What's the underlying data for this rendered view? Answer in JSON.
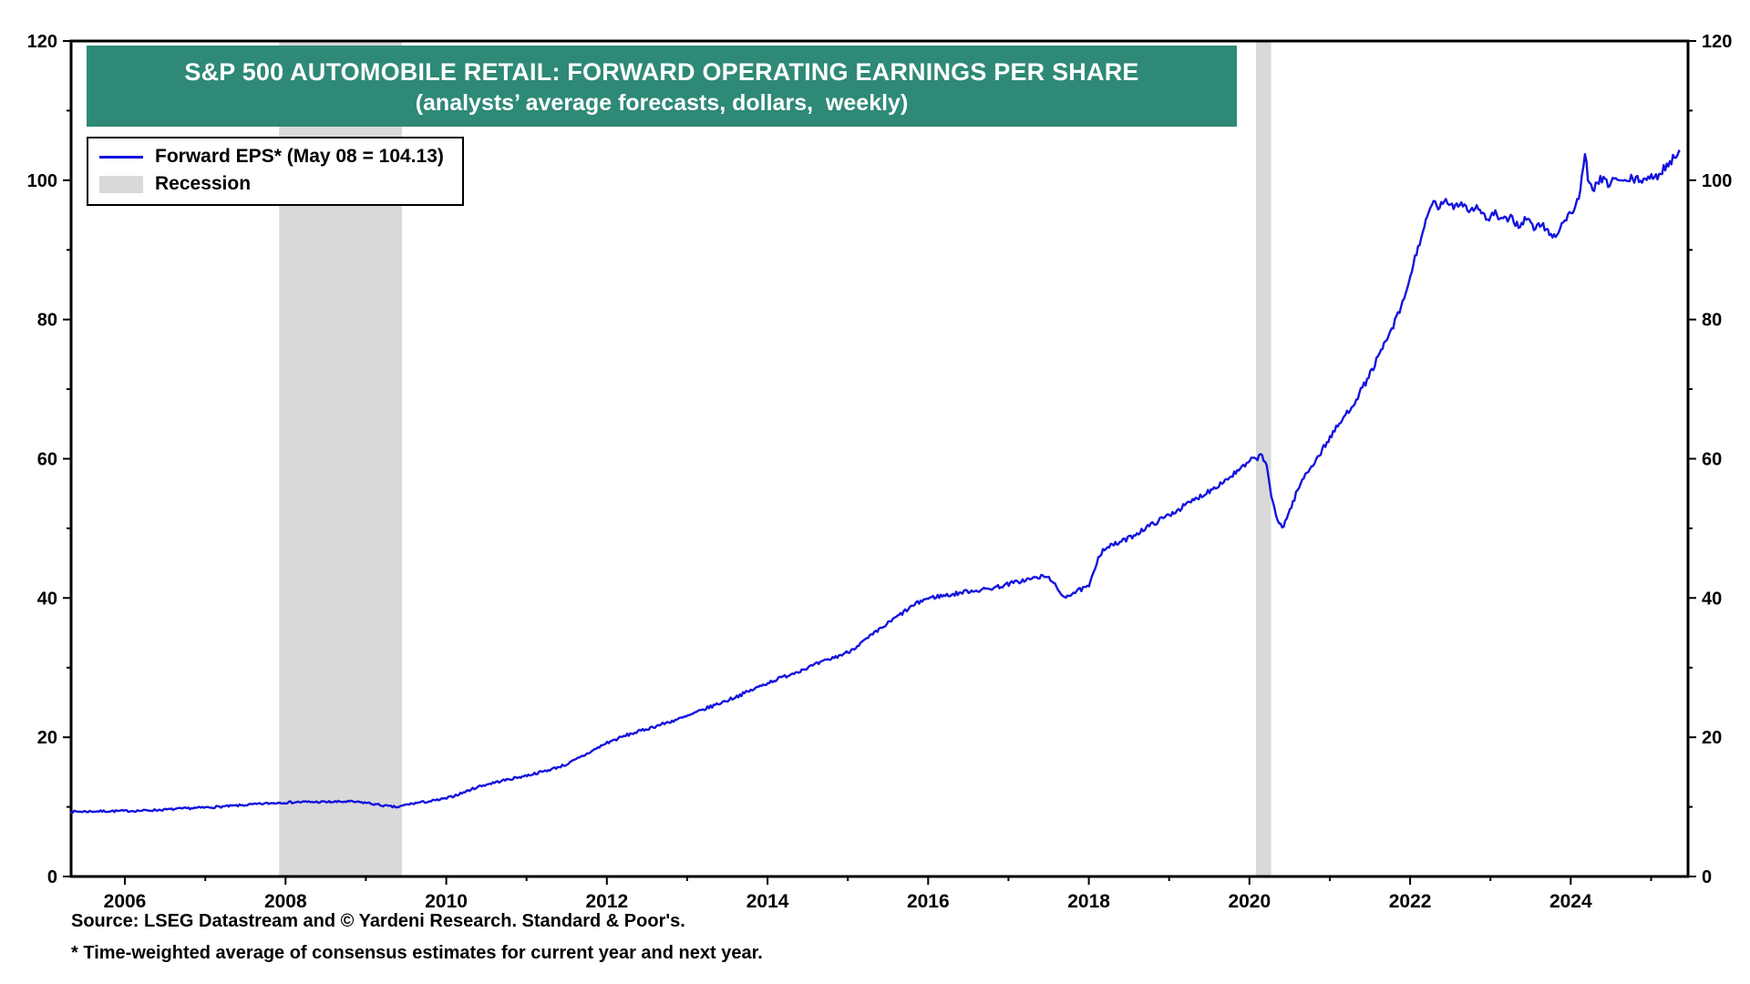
{
  "banner": {
    "title": "S&P 500 AUTOMOBILE RETAIL: FORWARD OPERATING EARNINGS PER SHARE",
    "subtitle": "(analysts’ average forecasts, dollars,  weekly)"
  },
  "legend": {
    "series_label": "Forward EPS* (May 08 = 104.13)",
    "recession_label": "Recession"
  },
  "footer": {
    "source": "Source: LSEG Datastream and © Yardeni Research. Standard & Poor's.",
    "footnote": "* Time-weighted average of consensus estimates for current year and next year."
  },
  "colors": {
    "line": "#1414dd",
    "banner_bg": "#2e8976",
    "recession": "#d9d9d9",
    "frame": "#000000",
    "text": "#000000"
  },
  "chart_data": {
    "type": "line",
    "title": "S&P 500 AUTOMOBILE RETAIL: FORWARD OPERATING EARNINGS PER SHARE",
    "subtitle": "(analysts’ average forecasts, dollars, weekly)",
    "xlabel": "",
    "ylabel": "",
    "grid": false,
    "legend_position": "top-left",
    "x_range": [
      2005.33,
      2025.46
    ],
    "y_range": [
      0,
      120
    ],
    "y_tick_labels": [
      0,
      20,
      40,
      60,
      80,
      100,
      120
    ],
    "y_minor_step": 10,
    "x_tick_labels": [
      2006,
      2008,
      2010,
      2012,
      2014,
      2016,
      2018,
      2020,
      2022,
      2024
    ],
    "x_minor_years": [
      2006,
      2007,
      2008,
      2009,
      2010,
      2011,
      2012,
      2013,
      2014,
      2015,
      2016,
      2017,
      2018,
      2019,
      2020,
      2021,
      2022,
      2023,
      2024,
      2025
    ],
    "recessions": [
      [
        2007.92,
        2009.45
      ],
      [
        2020.08,
        2020.27
      ]
    ],
    "latest": {
      "date_label": "May 08",
      "value": 104.13
    },
    "series": [
      {
        "name": "Forward EPS* (May 08 = 104.13)",
        "color": "#1414dd",
        "points": [
          [
            2005.33,
            9.3
          ],
          [
            2005.6,
            9.35
          ],
          [
            2005.9,
            9.4
          ],
          [
            2006.2,
            9.45
          ],
          [
            2006.5,
            9.6
          ],
          [
            2006.8,
            9.8
          ],
          [
            2007.0,
            9.9
          ],
          [
            2007.3,
            10.1
          ],
          [
            2007.6,
            10.35
          ],
          [
            2007.92,
            10.6
          ],
          [
            2008.2,
            10.7
          ],
          [
            2008.5,
            10.7
          ],
          [
            2008.8,
            10.75
          ],
          [
            2009.0,
            10.6
          ],
          [
            2009.15,
            10.3
          ],
          [
            2009.3,
            10.05
          ],
          [
            2009.4,
            9.95
          ],
          [
            2009.5,
            10.3
          ],
          [
            2009.65,
            10.6
          ],
          [
            2009.8,
            10.8
          ],
          [
            2010.0,
            11.2
          ],
          [
            2010.2,
            12.0
          ],
          [
            2010.4,
            12.9
          ],
          [
            2010.6,
            13.5
          ],
          [
            2010.8,
            14.0
          ],
          [
            2011.0,
            14.5
          ],
          [
            2011.25,
            15.2
          ],
          [
            2011.5,
            16.1
          ],
          [
            2011.75,
            17.6
          ],
          [
            2012.0,
            19.2
          ],
          [
            2012.25,
            20.3
          ],
          [
            2012.5,
            21.2
          ],
          [
            2012.75,
            22.1
          ],
          [
            2013.0,
            23.0
          ],
          [
            2013.25,
            24.2
          ],
          [
            2013.5,
            25.3
          ],
          [
            2013.75,
            26.5
          ],
          [
            2014.0,
            27.8
          ],
          [
            2014.25,
            28.9
          ],
          [
            2014.5,
            30.0
          ],
          [
            2014.75,
            31.1
          ],
          [
            2015.0,
            32.2
          ],
          [
            2015.2,
            33.8
          ],
          [
            2015.4,
            35.5
          ],
          [
            2015.6,
            37.2
          ],
          [
            2015.8,
            38.8
          ],
          [
            2015.95,
            39.8
          ],
          [
            2016.1,
            40.2
          ],
          [
            2016.3,
            40.5
          ],
          [
            2016.5,
            41.0
          ],
          [
            2016.7,
            41.2
          ],
          [
            2016.9,
            41.7
          ],
          [
            2017.1,
            42.3
          ],
          [
            2017.3,
            42.8
          ],
          [
            2017.45,
            43.1
          ],
          [
            2017.55,
            42.6
          ],
          [
            2017.62,
            40.8
          ],
          [
            2017.7,
            40.2
          ],
          [
            2017.8,
            40.7
          ],
          [
            2017.9,
            41.2
          ],
          [
            2018.0,
            41.6
          ],
          [
            2018.06,
            43.5
          ],
          [
            2018.12,
            46.0
          ],
          [
            2018.2,
            47.2
          ],
          [
            2018.35,
            47.8
          ],
          [
            2018.5,
            48.6
          ],
          [
            2018.7,
            50.0
          ],
          [
            2018.9,
            51.3
          ],
          [
            2019.1,
            52.6
          ],
          [
            2019.3,
            54.0
          ],
          [
            2019.5,
            55.4
          ],
          [
            2019.7,
            56.9
          ],
          [
            2019.9,
            58.6
          ],
          [
            2020.05,
            60.0
          ],
          [
            2020.15,
            60.4
          ],
          [
            2020.22,
            59.0
          ],
          [
            2020.28,
            54.0
          ],
          [
            2020.35,
            51.0
          ],
          [
            2020.42,
            50.3
          ],
          [
            2020.5,
            52.5
          ],
          [
            2020.6,
            55.5
          ],
          [
            2020.7,
            57.8
          ],
          [
            2020.85,
            60.2
          ],
          [
            2021.0,
            63.0
          ],
          [
            2021.15,
            65.5
          ],
          [
            2021.3,
            68.0
          ],
          [
            2021.45,
            71.0
          ],
          [
            2021.6,
            74.5
          ],
          [
            2021.75,
            78.0
          ],
          [
            2021.9,
            82.0
          ],
          [
            2022.0,
            86.0
          ],
          [
            2022.1,
            90.5
          ],
          [
            2022.2,
            94.0
          ],
          [
            2022.28,
            96.8
          ],
          [
            2022.35,
            96.2
          ],
          [
            2022.45,
            96.8
          ],
          [
            2022.55,
            96.4
          ],
          [
            2022.65,
            96.8
          ],
          [
            2022.75,
            95.6
          ],
          [
            2022.85,
            96.3
          ],
          [
            2022.95,
            94.2
          ],
          [
            2023.05,
            95.3
          ],
          [
            2023.15,
            94.0
          ],
          [
            2023.25,
            94.8
          ],
          [
            2023.35,
            93.4
          ],
          [
            2023.45,
            94.6
          ],
          [
            2023.55,
            93.0
          ],
          [
            2023.65,
            93.8
          ],
          [
            2023.72,
            92.4
          ],
          [
            2023.8,
            91.9
          ],
          [
            2023.88,
            93.5
          ],
          [
            2023.95,
            94.6
          ],
          [
            2024.05,
            96.0
          ],
          [
            2024.12,
            98.5
          ],
          [
            2024.18,
            104.0
          ],
          [
            2024.22,
            99.2
          ],
          [
            2024.3,
            99.0
          ],
          [
            2024.38,
            100.2
          ],
          [
            2024.46,
            99.4
          ],
          [
            2024.55,
            100.3
          ],
          [
            2024.65,
            99.6
          ],
          [
            2024.75,
            100.2
          ],
          [
            2024.85,
            100.0
          ],
          [
            2024.95,
            100.4
          ],
          [
            2025.05,
            100.2
          ],
          [
            2025.15,
            101.6
          ],
          [
            2025.25,
            102.8
          ],
          [
            2025.35,
            104.13
          ]
        ]
      }
    ]
  }
}
